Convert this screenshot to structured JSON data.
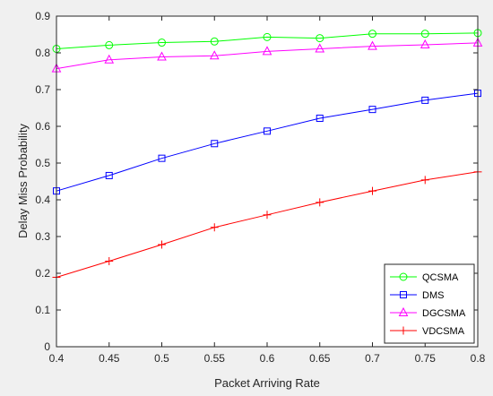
{
  "chart_data": {
    "type": "line",
    "title": "",
    "xlabel": "Packet Arriving Rate",
    "ylabel": "Delay Miss Probability",
    "xlim": [
      0.4,
      0.8
    ],
    "ylim": [
      0,
      0.9
    ],
    "x": [
      0.4,
      0.45,
      0.5,
      0.55,
      0.6,
      0.65,
      0.7,
      0.75,
      0.8
    ],
    "xticks": [
      "0.4",
      "0.45",
      "0.5",
      "0.55",
      "0.6",
      "0.65",
      "0.7",
      "0.75",
      "0.8"
    ],
    "yticks": [
      "0",
      "0.1",
      "0.2",
      "0.3",
      "0.4",
      "0.5",
      "0.6",
      "0.7",
      "0.8",
      "0.9"
    ],
    "xtick_values": [
      0.4,
      0.45,
      0.5,
      0.55,
      0.6,
      0.65,
      0.7,
      0.75,
      0.8
    ],
    "ytick_values": [
      0,
      0.1,
      0.2,
      0.3,
      0.4,
      0.5,
      0.6,
      0.7,
      0.8,
      0.9
    ],
    "grid": false,
    "legend_position": "bottom-right",
    "series": [
      {
        "name": "QCSMA",
        "color": "#00ff00",
        "marker": "circle",
        "values": [
          0.811,
          0.821,
          0.828,
          0.831,
          0.843,
          0.84,
          0.852,
          0.852,
          0.854
        ]
      },
      {
        "name": "DMS",
        "color": "#0000ff",
        "marker": "square",
        "values": [
          0.424,
          0.466,
          0.513,
          0.553,
          0.587,
          0.622,
          0.646,
          0.671,
          0.69
        ]
      },
      {
        "name": "DGCSMA",
        "color": "#ff00ff",
        "marker": "triangle",
        "values": [
          0.757,
          0.781,
          0.789,
          0.792,
          0.804,
          0.811,
          0.818,
          0.822,
          0.827
        ]
      },
      {
        "name": "VDCSMA",
        "color": "#ff0000",
        "marker": "plus",
        "values": [
          0.189,
          0.233,
          0.278,
          0.325,
          0.359,
          0.393,
          0.424,
          0.454,
          0.476
        ]
      }
    ]
  }
}
